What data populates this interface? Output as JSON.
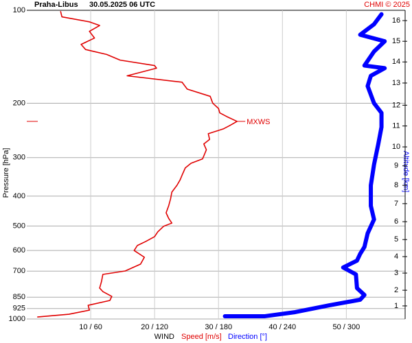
{
  "chart_data": {
    "type": "line",
    "station": "Praha-Libus",
    "title": "30.05.2025 06 UTC",
    "credit": "CHMI © 2025",
    "y_label": "Pressure [hPa]",
    "y2_label": "Altitude [km]",
    "x_label": "WIND",
    "x_label_speed": "Speed [m/s]",
    "x_label_direction": "Direction [°]",
    "annotation": "MXWS",
    "annotation_pressure": 229,
    "annotation_speed": 32.9,
    "ylog": true,
    "grid": true,
    "ylim": [
      1000,
      100
    ],
    "yticks": [
      100,
      200,
      300,
      400,
      500,
      600,
      700,
      850,
      925,
      1000
    ],
    "xlim": [
      0,
      59.2
    ],
    "x2lim": [
      0,
      355.2
    ],
    "xticks": [
      {
        "value": 10,
        "label": "10 / 60"
      },
      {
        "value": 20,
        "label": "20 / 120"
      },
      {
        "value": 30,
        "label": "30 / 180"
      },
      {
        "value": 40,
        "label": "40 / 240"
      },
      {
        "value": 50,
        "label": "50 / 300"
      }
    ],
    "altitude_ticks": [
      {
        "value": 907,
        "label": "1"
      },
      {
        "value": 807,
        "label": "2"
      },
      {
        "value": 710,
        "label": "3"
      },
      {
        "value": 628,
        "label": "4"
      },
      {
        "value": 553,
        "label": "5"
      },
      {
        "value": 484,
        "label": "6"
      },
      {
        "value": 423,
        "label": "7"
      },
      {
        "value": 369,
        "label": "8"
      },
      {
        "value": 319,
        "label": "9"
      },
      {
        "value": 277,
        "label": "10"
      },
      {
        "value": 237,
        "label": "11"
      },
      {
        "value": 203,
        "label": "12"
      },
      {
        "value": 172,
        "label": "13"
      },
      {
        "value": 147,
        "label": "14"
      },
      {
        "value": 126,
        "label": "15"
      },
      {
        "value": 108,
        "label": "16"
      }
    ],
    "series": [
      {
        "name": "Speed [m/s]",
        "color": "#e00000",
        "width": 1.6,
        "axis": "x",
        "pressure": [
          985,
          965,
          936,
          903,
          871,
          845,
          815,
          794,
          755,
          717,
          699,
          664,
          631,
          600,
          578,
          561,
          541,
          522,
          501,
          489,
          472,
          453,
          430,
          408,
          388,
          369,
          354,
          342,
          324,
          313,
          303,
          293,
          283,
          271,
          262,
          251,
          242,
          236,
          229,
          221,
          215,
          208,
          200,
          190,
          180,
          171,
          163,
          154,
          151,
          145,
          139,
          134,
          129,
          123,
          117,
          112,
          109,
          105,
          101
        ],
        "values": [
          1.7,
          6.6,
          9.8,
          9.6,
          13.0,
          13.3,
          11.9,
          11.4,
          11.7,
          11.9,
          15.4,
          17.8,
          18.4,
          16.8,
          17.3,
          18.6,
          20.0,
          20.5,
          21.4,
          22.7,
          22.2,
          21.8,
          22.2,
          22.5,
          22.7,
          23.5,
          24.0,
          24.3,
          24.8,
          25.7,
          27.5,
          27.8,
          28.1,
          27.7,
          28.6,
          28.4,
          30.8,
          31.8,
          32.9,
          31.3,
          30.2,
          30.0,
          29.1,
          28.7,
          25.1,
          24.3,
          15.7,
          20.3,
          20.0,
          14.6,
          12.5,
          9.2,
          8.5,
          10.6,
          9.8,
          11.4,
          9.8,
          5.5,
          5.3
        ]
      },
      {
        "name": "Direction [°]",
        "color": "#0000ff",
        "width": 6,
        "axis": "x2",
        "pressure": [
          980,
          980,
          980,
          980,
          980,
          950,
          903,
          866,
          836,
          794,
          717,
          681,
          647,
          615,
          584,
          528,
          476,
          430,
          369,
          316,
          271,
          239,
          215,
          200,
          176,
          163,
          154,
          151,
          136,
          126,
          120,
          111,
          103
        ],
        "values": [
          186,
          194,
          204,
          213,
          223,
          252,
          284,
          313,
          317,
          310,
          309,
          297,
          310,
          313,
          317,
          320,
          326,
          323,
          323,
          326,
          330,
          333,
          333,
          326,
          320,
          323,
          336,
          317,
          326,
          336,
          313,
          326,
          333
        ]
      }
    ]
  }
}
